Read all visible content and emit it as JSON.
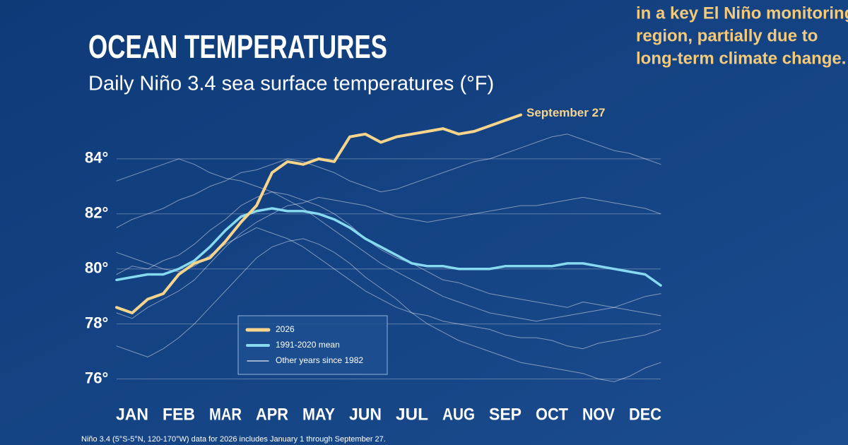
{
  "chart_data": {
    "type": "line",
    "title": "OCEAN TEMPERATURES",
    "subtitle": "Daily Niño 3.4 sea surface temperatures (°F)",
    "annotation": "September 27",
    "footnote": "Niño 3.4 (5°S-5°N, 120-170°W) data for 2026 includes January 1 through September 27.",
    "side_text": [
      "in a key El Niño monitoring",
      "region, partially due to",
      "long-term climate change."
    ],
    "categories": [
      null,
      "JAN",
      null,
      null,
      "FEB",
      null,
      null,
      "MAR",
      null,
      null,
      "APR",
      null,
      null,
      "MAY",
      null,
      null,
      "JUN",
      null,
      null,
      "JUL",
      null,
      null,
      "AUG",
      null,
      null,
      "SEP",
      null,
      null,
      "OCT",
      null,
      null,
      "NOV",
      null,
      null,
      "DEC",
      null
    ],
    "series": [
      {
        "name": "2026",
        "color": "#f6d48c",
        "values": [
          78.6,
          78.4,
          78.9,
          79.1,
          79.8,
          80.2,
          80.4,
          81.0,
          81.7,
          82.3,
          83.5,
          83.9,
          83.8,
          84.0,
          83.9,
          84.8,
          84.9,
          84.6,
          84.8,
          84.9,
          85.0,
          85.1,
          84.9,
          85.0,
          85.2,
          85.4,
          85.6,
          null,
          null,
          null,
          null,
          null,
          null,
          null,
          null,
          null
        ]
      },
      {
        "name": "1991-2020 mean",
        "color": "#86d9ef",
        "values": [
          79.6,
          79.7,
          79.8,
          79.8,
          80.0,
          80.3,
          80.8,
          81.4,
          81.9,
          82.1,
          82.2,
          82.1,
          82.1,
          82.0,
          81.8,
          81.5,
          81.1,
          80.8,
          80.5,
          80.2,
          80.1,
          80.1,
          80.0,
          80.0,
          80.0,
          80.1,
          80.1,
          80.1,
          80.1,
          80.2,
          80.2,
          80.1,
          80.0,
          79.9,
          79.8,
          79.4
        ]
      }
    ],
    "other_years": {
      "name": "Other years since 1982",
      "color": "#ffffff",
      "lines": [
        [
          81.5,
          81.8,
          82.0,
          82.2,
          82.5,
          82.7,
          83.0,
          83.2,
          83.5,
          83.6,
          83.8,
          84.0,
          83.9,
          83.7,
          83.5,
          83.2,
          83.0,
          82.8,
          82.9,
          83.1,
          83.3,
          83.5,
          83.7,
          83.9,
          84.0,
          84.2,
          84.4,
          84.6,
          84.8,
          84.9,
          84.7,
          84.5,
          84.3,
          84.2,
          84.0,
          83.8
        ],
        [
          77.2,
          77.0,
          76.8,
          77.1,
          77.5,
          78.0,
          78.6,
          79.2,
          79.8,
          80.4,
          80.8,
          81.0,
          81.1,
          80.9,
          80.6,
          80.2,
          79.7,
          79.3,
          78.9,
          78.4,
          78.0,
          77.7,
          77.4,
          77.2,
          77.0,
          76.8,
          76.6,
          76.5,
          76.4,
          76.3,
          76.2,
          76.0,
          75.9,
          76.1,
          76.4,
          76.6
        ],
        [
          79.8,
          80.1,
          80.0,
          80.3,
          80.5,
          80.9,
          81.4,
          81.8,
          82.3,
          82.6,
          82.8,
          82.7,
          82.5,
          82.3,
          82.0,
          81.6,
          81.1,
          80.7,
          80.4,
          80.2,
          79.9,
          79.6,
          79.5,
          79.3,
          79.1,
          79.0,
          78.9,
          78.8,
          78.7,
          78.6,
          78.8,
          78.7,
          78.6,
          78.5,
          78.4,
          78.3
        ],
        [
          78.4,
          78.2,
          78.6,
          78.9,
          79.2,
          79.6,
          80.2,
          80.8,
          81.3,
          81.7,
          82.0,
          82.3,
          82.4,
          82.6,
          82.5,
          82.4,
          82.3,
          82.1,
          81.9,
          81.8,
          81.7,
          81.8,
          81.9,
          82.0,
          82.1,
          82.2,
          82.3,
          82.3,
          82.4,
          82.5,
          82.6,
          82.5,
          82.4,
          82.3,
          82.2,
          82.0
        ],
        [
          80.6,
          80.4,
          80.2,
          80.0,
          79.9,
          80.1,
          80.5,
          80.9,
          81.2,
          81.5,
          81.3,
          81.1,
          80.8,
          80.4,
          80.0,
          79.6,
          79.2,
          78.9,
          78.6,
          78.4,
          78.3,
          78.1,
          78.0,
          77.9,
          77.8,
          77.6,
          77.5,
          77.5,
          77.4,
          77.2,
          77.1,
          77.3,
          77.4,
          77.5,
          77.6,
          77.8
        ],
        [
          83.2,
          83.4,
          83.6,
          83.8,
          84.0,
          83.8,
          83.5,
          83.3,
          83.2,
          83.0,
          82.8,
          82.5,
          82.2,
          81.8,
          81.4,
          81.0,
          80.6,
          80.2,
          79.9,
          79.6,
          79.3,
          79.0,
          78.8,
          78.6,
          78.4,
          78.3,
          78.2,
          78.1,
          78.2,
          78.3,
          78.4,
          78.5,
          78.6,
          78.8,
          79.0,
          79.1
        ]
      ]
    },
    "ylim": [
      75.5,
      86
    ],
    "yticks": [
      {
        "value": 76,
        "label": "76°"
      },
      {
        "value": 78,
        "label": "78°"
      },
      {
        "value": 80,
        "label": "80°"
      },
      {
        "value": 82,
        "label": "82°"
      },
      {
        "value": 84,
        "label": "84°"
      }
    ],
    "grid": true
  }
}
